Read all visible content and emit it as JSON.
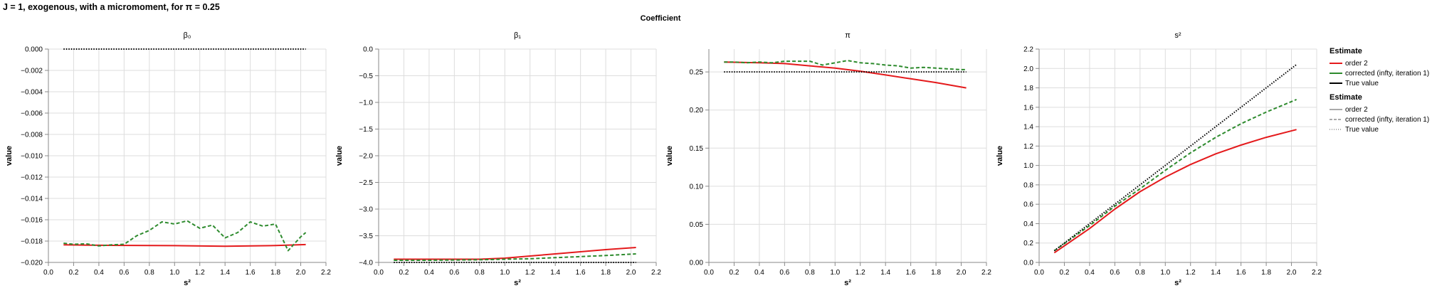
{
  "figure": {
    "title": "J = 1, exogenous, with a micromoment,  for π = 0.25",
    "column_header": "Coefficient"
  },
  "legend": {
    "groups": [
      {
        "title": "Estimate",
        "items": [
          {
            "label": "order 2",
            "color": "#e41a1c",
            "dash": "solid"
          },
          {
            "label": "corrected (infty, iteration 1)",
            "color": "#2e8b2e",
            "dash": "solid"
          },
          {
            "label": "True value",
            "color": "#000000",
            "dash": "solid"
          }
        ]
      },
      {
        "title": "Estimate",
        "items": [
          {
            "label": "order 2",
            "color": "#555555",
            "dash": "solid"
          },
          {
            "label": "corrected (infty, iteration 1)",
            "color": "#555555",
            "dash": "dashed"
          },
          {
            "label": "True value",
            "color": "#555555",
            "dash": "dotted"
          }
        ]
      }
    ]
  },
  "chart_data": [
    {
      "type": "line",
      "title": "β₀",
      "xlabel": "s²",
      "ylabel": "value",
      "xlim": [
        0.0,
        2.2
      ],
      "ylim": [
        -0.02,
        0.0
      ],
      "xticks": [
        0.0,
        0.2,
        0.4,
        0.6,
        0.8,
        1.0,
        1.2,
        1.4,
        1.6,
        1.8,
        2.0,
        2.2
      ],
      "xtick_labels": [
        "0.0",
        "0.2",
        "0.4",
        "0.6",
        "0.8",
        "1.0",
        "1.2",
        "1.4",
        "1.6",
        "1.8",
        "2.0",
        "2.2"
      ],
      "yticks": [
        0.0,
        -0.002,
        -0.004,
        -0.006,
        -0.008,
        -0.01,
        -0.012,
        -0.014,
        -0.016,
        -0.018,
        -0.02
      ],
      "ytick_labels": [
        "0.000",
        "−0.002",
        "−0.004",
        "−0.006",
        "−0.008",
        "−0.010",
        "−0.012",
        "−0.014",
        "−0.016",
        "−0.018",
        "−0.020"
      ],
      "grid": true,
      "series": [
        {
          "name": "order 2",
          "color": "#e41a1c",
          "dash": "solid",
          "x": [
            0.12,
            0.5,
            1.0,
            1.4,
            1.8,
            2.04
          ],
          "y": [
            -0.01835,
            -0.0184,
            -0.01843,
            -0.01848,
            -0.01842,
            -0.01833
          ]
        },
        {
          "name": "corrected (infty, iteration 1)",
          "color": "#2e8b2e",
          "dash": "dashed",
          "x": [
            0.12,
            0.2,
            0.3,
            0.4,
            0.5,
            0.6,
            0.7,
            0.8,
            0.9,
            1.0,
            1.1,
            1.2,
            1.3,
            1.4,
            1.5,
            1.6,
            1.7,
            1.8,
            1.9,
            2.0,
            2.04
          ],
          "y": [
            -0.0182,
            -0.0183,
            -0.01825,
            -0.01845,
            -0.01835,
            -0.0183,
            -0.0175,
            -0.017,
            -0.0162,
            -0.0164,
            -0.0161,
            -0.0168,
            -0.0165,
            -0.0177,
            -0.0172,
            -0.0162,
            -0.0166,
            -0.0164,
            -0.0189,
            -0.0176,
            -0.0172
          ]
        },
        {
          "name": "True value",
          "color": "#000000",
          "dash": "dotted",
          "x": [
            0.12,
            2.04
          ],
          "y": [
            0.0,
            0.0
          ]
        }
      ]
    },
    {
      "type": "line",
      "title": "β₁",
      "xlabel": "s²",
      "ylabel": "value",
      "xlim": [
        0.0,
        2.2
      ],
      "ylim": [
        -4.0,
        0.0
      ],
      "xticks": [
        0.0,
        0.2,
        0.4,
        0.6,
        0.8,
        1.0,
        1.2,
        1.4,
        1.6,
        1.8,
        2.0,
        2.2
      ],
      "xtick_labels": [
        "0.0",
        "0.2",
        "0.4",
        "0.6",
        "0.8",
        "1.0",
        "1.2",
        "1.4",
        "1.6",
        "1.8",
        "2.0",
        "2.2"
      ],
      "yticks": [
        0.0,
        -0.5,
        -1.0,
        -1.5,
        -2.0,
        -2.5,
        -3.0,
        -3.5,
        -4.0
      ],
      "ytick_labels": [
        "0.0",
        "−0.5",
        "−1.0",
        "−1.5",
        "−2.0",
        "−2.5",
        "−3.0",
        "−3.5",
        "−4.0"
      ],
      "grid": true,
      "series": [
        {
          "name": "order 2",
          "color": "#e41a1c",
          "dash": "solid",
          "x": [
            0.12,
            0.4,
            0.8,
            1.0,
            1.2,
            1.4,
            1.6,
            1.8,
            2.04
          ],
          "y": [
            -3.94,
            -3.94,
            -3.94,
            -3.92,
            -3.88,
            -3.84,
            -3.8,
            -3.76,
            -3.72
          ]
        },
        {
          "name": "corrected (infty, iteration 1)",
          "color": "#2e8b2e",
          "dash": "dashed",
          "x": [
            0.12,
            0.4,
            0.8,
            1.0,
            1.2,
            1.4,
            1.6,
            1.8,
            2.04
          ],
          "y": [
            -3.96,
            -3.96,
            -3.95,
            -3.94,
            -3.93,
            -3.91,
            -3.89,
            -3.87,
            -3.84
          ]
        },
        {
          "name": "True value",
          "color": "#000000",
          "dash": "dotted",
          "x": [
            0.12,
            2.04
          ],
          "y": [
            -4.0,
            -4.0
          ]
        }
      ]
    },
    {
      "type": "line",
      "title": "π",
      "xlabel": "s²",
      "ylabel": "value",
      "xlim": [
        0.0,
        2.2
      ],
      "ylim": [
        0.0,
        0.28
      ],
      "xticks": [
        0.0,
        0.2,
        0.4,
        0.6,
        0.8,
        1.0,
        1.2,
        1.4,
        1.6,
        1.8,
        2.0,
        2.2
      ],
      "xtick_labels": [
        "0.0",
        "0.2",
        "0.4",
        "0.6",
        "0.8",
        "1.0",
        "1.2",
        "1.4",
        "1.6",
        "1.8",
        "2.0",
        "2.2"
      ],
      "yticks": [
        0.0,
        0.05,
        0.1,
        0.15,
        0.2,
        0.25
      ],
      "ytick_labels": [
        "0.00",
        "0.05",
        "0.10",
        "0.15",
        "0.20",
        "0.25"
      ],
      "grid": true,
      "series": [
        {
          "name": "order 2",
          "color": "#e41a1c",
          "dash": "solid",
          "x": [
            0.12,
            0.4,
            0.6,
            0.8,
            1.0,
            1.2,
            1.4,
            1.6,
            1.8,
            2.04
          ],
          "y": [
            0.263,
            0.262,
            0.261,
            0.258,
            0.255,
            0.251,
            0.246,
            0.241,
            0.236,
            0.229
          ]
        },
        {
          "name": "corrected (infty, iteration 1)",
          "color": "#2e8b2e",
          "dash": "dashed",
          "x": [
            0.12,
            0.2,
            0.3,
            0.4,
            0.5,
            0.6,
            0.7,
            0.8,
            0.9,
            1.0,
            1.1,
            1.2,
            1.3,
            1.4,
            1.5,
            1.6,
            1.7,
            1.8,
            1.9,
            2.0,
            2.04
          ],
          "y": [
            0.263,
            0.263,
            0.262,
            0.263,
            0.262,
            0.264,
            0.264,
            0.264,
            0.259,
            0.262,
            0.265,
            0.262,
            0.261,
            0.259,
            0.258,
            0.255,
            0.256,
            0.255,
            0.254,
            0.253,
            0.253
          ]
        },
        {
          "name": "True value",
          "color": "#000000",
          "dash": "dotted",
          "x": [
            0.12,
            2.04
          ],
          "y": [
            0.25,
            0.25
          ]
        }
      ]
    },
    {
      "type": "line",
      "title": "s²",
      "xlabel": "s²",
      "ylabel": "value",
      "xlim": [
        0.0,
        2.2
      ],
      "ylim": [
        0.0,
        2.2
      ],
      "xticks": [
        0.0,
        0.2,
        0.4,
        0.6,
        0.8,
        1.0,
        1.2,
        1.4,
        1.6,
        1.8,
        2.0,
        2.2
      ],
      "xtick_labels": [
        "0.0",
        "0.2",
        "0.4",
        "0.6",
        "0.8",
        "1.0",
        "1.2",
        "1.4",
        "1.6",
        "1.8",
        "2.0",
        "2.2"
      ],
      "yticks": [
        0.0,
        0.2,
        0.4,
        0.6,
        0.8,
        1.0,
        1.2,
        1.4,
        1.6,
        1.8,
        2.0,
        2.2
      ],
      "ytick_labels": [
        "0.0",
        "0.2",
        "0.4",
        "0.6",
        "0.8",
        "1.0",
        "1.2",
        "1.4",
        "1.6",
        "1.8",
        "2.0",
        "2.2"
      ],
      "grid": true,
      "series": [
        {
          "name": "order 2",
          "color": "#e41a1c",
          "dash": "solid",
          "x": [
            0.12,
            0.4,
            0.6,
            0.8,
            1.0,
            1.2,
            1.4,
            1.6,
            1.8,
            2.04
          ],
          "y": [
            0.1,
            0.35,
            0.55,
            0.73,
            0.88,
            1.01,
            1.12,
            1.21,
            1.29,
            1.37
          ]
        },
        {
          "name": "corrected (infty, iteration 1)",
          "color": "#2e8b2e",
          "dash": "dashed",
          "x": [
            0.12,
            0.4,
            0.6,
            0.8,
            1.0,
            1.2,
            1.4,
            1.6,
            1.8,
            2.04
          ],
          "y": [
            0.12,
            0.38,
            0.58,
            0.76,
            0.95,
            1.13,
            1.29,
            1.43,
            1.55,
            1.68
          ]
        },
        {
          "name": "True value",
          "color": "#000000",
          "dash": "dotted",
          "x": [
            0.12,
            2.04
          ],
          "y": [
            0.12,
            2.04
          ]
        }
      ]
    }
  ]
}
